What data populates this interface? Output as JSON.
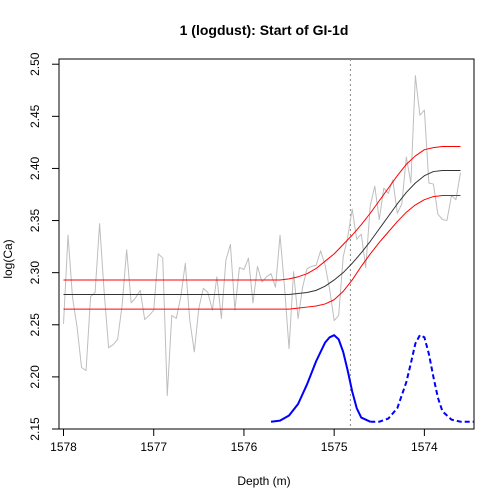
{
  "chart_data": {
    "type": "line",
    "title": "1 (logdust): Start of GI-1d",
    "xlabel": "Depth (m)",
    "ylabel": "log(Ca)",
    "x_reversed": true,
    "xlim": [
      1578.05,
      1573.45
    ],
    "ylim": [
      2.15,
      2.505
    ],
    "x_ticks": [
      1578,
      1577,
      1576,
      1575,
      1574
    ],
    "y_ticks": [
      2.15,
      2.2,
      2.25,
      2.3,
      2.35,
      2.4,
      2.45,
      2.5
    ],
    "x_tick_labels": [
      "1578",
      "1577",
      "1576",
      "1575",
      "1574"
    ],
    "y_tick_labels": [
      "2.15",
      "2.20",
      "2.25",
      "2.30",
      "2.35",
      "2.40",
      "2.45",
      "2.50"
    ],
    "grid": false,
    "vertical_line": {
      "x": 1574.82,
      "style": "dotted",
      "color": "#888888"
    },
    "series": [
      {
        "role": "observations",
        "color": "#bebebe",
        "style": "solid",
        "x": [
          1578.0,
          1577.95,
          1577.9,
          1577.85,
          1577.8,
          1577.75,
          1577.7,
          1577.65,
          1577.6,
          1577.55,
          1577.5,
          1577.45,
          1577.4,
          1577.35,
          1577.3,
          1577.25,
          1577.2,
          1577.15,
          1577.1,
          1577.05,
          1577.0,
          1576.95,
          1576.9,
          1576.85,
          1576.8,
          1576.75,
          1576.7,
          1576.65,
          1576.6,
          1576.55,
          1576.5,
          1576.45,
          1576.4,
          1576.35,
          1576.3,
          1576.25,
          1576.2,
          1576.15,
          1576.1,
          1576.05,
          1576.0,
          1575.95,
          1575.9,
          1575.85,
          1575.8,
          1575.75,
          1575.7,
          1575.65,
          1575.6,
          1575.55,
          1575.5,
          1575.45,
          1575.4,
          1575.35,
          1575.3,
          1575.25,
          1575.2,
          1575.15,
          1575.1,
          1575.05,
          1575.0,
          1574.95,
          1574.9,
          1574.85,
          1574.8,
          1574.75,
          1574.7,
          1574.65,
          1574.6,
          1574.55,
          1574.5,
          1574.45,
          1574.4,
          1574.35,
          1574.3,
          1574.25,
          1574.2,
          1574.15,
          1574.1,
          1574.05,
          1574.0,
          1573.95,
          1573.9,
          1573.85,
          1573.8,
          1573.75,
          1573.7,
          1573.65,
          1573.6
        ],
        "y": [
          2.251,
          2.336,
          2.276,
          2.248,
          2.209,
          2.206,
          2.277,
          2.281,
          2.347,
          2.282,
          2.228,
          2.231,
          2.236,
          2.269,
          2.322,
          2.271,
          2.276,
          2.283,
          2.255,
          2.259,
          2.264,
          2.318,
          2.314,
          2.182,
          2.259,
          2.256,
          2.277,
          2.309,
          2.254,
          2.224,
          2.266,
          2.285,
          2.281,
          2.264,
          2.296,
          2.256,
          2.312,
          2.327,
          2.264,
          2.305,
          2.303,
          2.314,
          2.271,
          2.306,
          2.291,
          2.296,
          2.299,
          2.286,
          2.336,
          2.286,
          2.227,
          2.301,
          2.256,
          2.286,
          2.304,
          2.306,
          2.307,
          2.321,
          2.307,
          2.284,
          2.254,
          2.259,
          2.315,
          2.334,
          2.361,
          2.332,
          2.337,
          2.305,
          2.364,
          2.383,
          2.351,
          2.381,
          2.376,
          2.389,
          2.357,
          2.366,
          2.411,
          2.386,
          2.489,
          2.451,
          2.456,
          2.386,
          2.385,
          2.356,
          2.351,
          2.35,
          2.374,
          2.37,
          2.396
        ]
      },
      {
        "role": "fit-mean",
        "color": "#333333",
        "style": "solid",
        "x": [
          1578.0,
          1575.6,
          1575.5,
          1575.4,
          1575.3,
          1575.2,
          1575.1,
          1575.0,
          1574.9,
          1574.8,
          1574.7,
          1574.6,
          1574.5,
          1574.4,
          1574.3,
          1574.2,
          1574.1,
          1574.0,
          1573.9,
          1573.8,
          1573.6
        ],
        "y": [
          2.279,
          2.279,
          2.279,
          2.28,
          2.281,
          2.283,
          2.287,
          2.293,
          2.3,
          2.309,
          2.319,
          2.33,
          2.342,
          2.354,
          2.366,
          2.377,
          2.386,
          2.393,
          2.397,
          2.398,
          2.398
        ]
      },
      {
        "role": "fit-upper",
        "color": "#ff0000",
        "style": "solid",
        "x": [
          1578.0,
          1575.6,
          1575.5,
          1575.4,
          1575.3,
          1575.2,
          1575.1,
          1575.0,
          1574.9,
          1574.8,
          1574.7,
          1574.6,
          1574.5,
          1574.4,
          1574.3,
          1574.2,
          1574.1,
          1574.0,
          1573.9,
          1573.8,
          1573.6
        ],
        "y": [
          2.293,
          2.293,
          2.294,
          2.296,
          2.299,
          2.304,
          2.311,
          2.318,
          2.327,
          2.336,
          2.346,
          2.357,
          2.369,
          2.381,
          2.393,
          2.404,
          2.412,
          2.418,
          2.42,
          2.421,
          2.421
        ]
      },
      {
        "role": "fit-lower",
        "color": "#ff0000",
        "style": "solid",
        "x": [
          1578.0,
          1575.5,
          1575.4,
          1575.3,
          1575.2,
          1575.1,
          1575.0,
          1574.9,
          1574.8,
          1574.7,
          1574.6,
          1574.5,
          1574.4,
          1574.3,
          1574.2,
          1574.1,
          1574.0,
          1573.9,
          1573.8,
          1573.6
        ],
        "y": [
          2.265,
          2.265,
          2.266,
          2.267,
          2.268,
          2.27,
          2.274,
          2.282,
          2.293,
          2.306,
          2.318,
          2.329,
          2.339,
          2.349,
          2.358,
          2.365,
          2.37,
          2.373,
          2.374,
          2.374
        ]
      },
      {
        "role": "onset-density",
        "color": "#0000ff",
        "style": "solid",
        "x": [
          1575.7,
          1575.6,
          1575.5,
          1575.4,
          1575.3,
          1575.2,
          1575.1,
          1575.05,
          1575.0,
          1574.95,
          1574.9,
          1574.85,
          1574.8,
          1574.75,
          1574.7,
          1574.6
        ],
        "y": [
          2.157,
          2.158,
          2.163,
          2.174,
          2.193,
          2.215,
          2.233,
          2.238,
          2.24,
          2.236,
          2.224,
          2.206,
          2.186,
          2.17,
          2.161,
          2.157
        ]
      },
      {
        "role": "end-density",
        "color": "#0000ff",
        "style": "dashed",
        "x": [
          1574.6,
          1574.5,
          1574.4,
          1574.3,
          1574.2,
          1574.15,
          1574.1,
          1574.05,
          1574.0,
          1573.95,
          1573.9,
          1573.85,
          1573.8,
          1573.7,
          1573.6,
          1573.45
        ],
        "y": [
          2.157,
          2.157,
          2.16,
          2.17,
          2.195,
          2.213,
          2.232,
          2.24,
          2.238,
          2.222,
          2.2,
          2.18,
          2.167,
          2.159,
          2.157,
          2.157
        ]
      }
    ]
  }
}
